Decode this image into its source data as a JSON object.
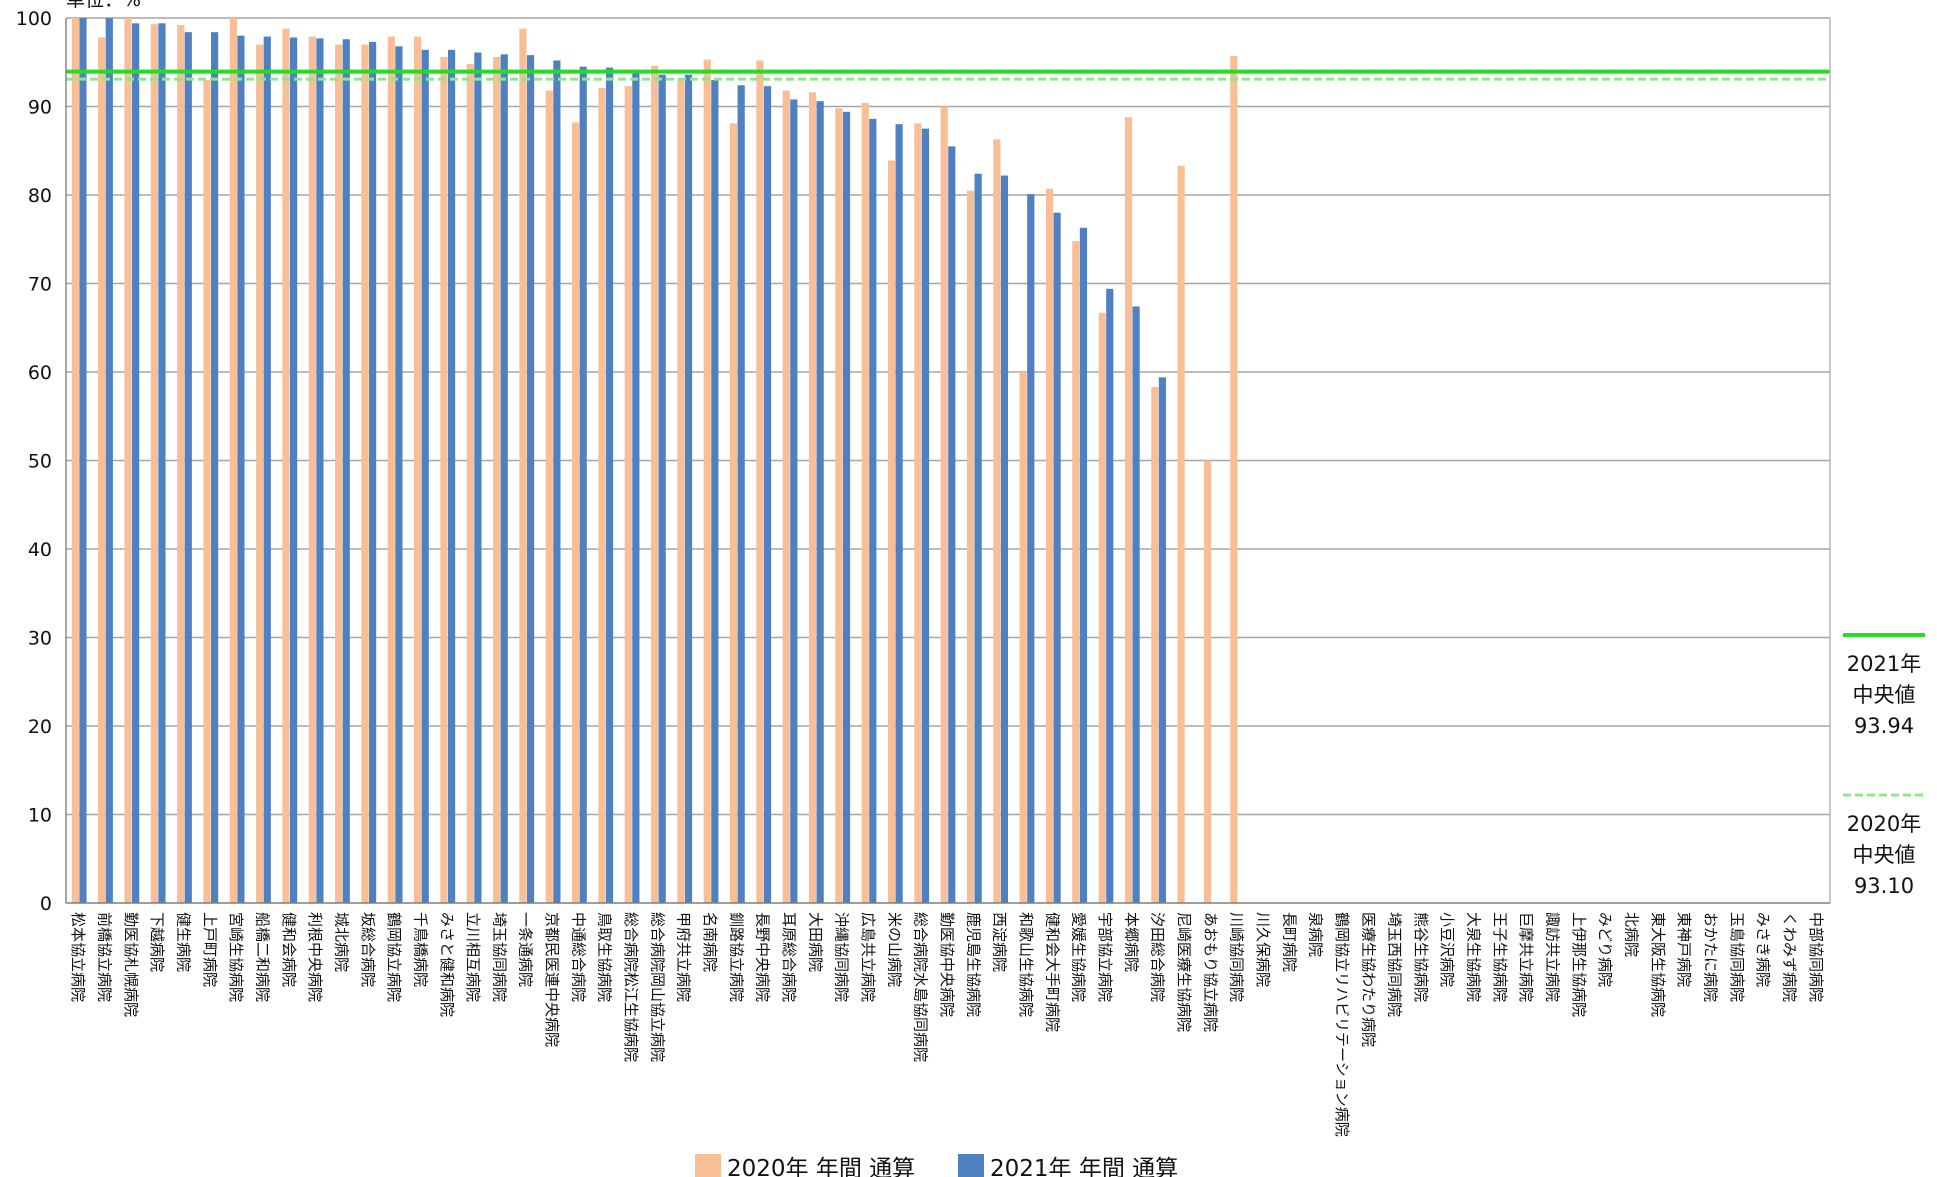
{
  "chart_data": {
    "type": "bar",
    "unit_label": "単位：%",
    "ylim": [
      0,
      100
    ],
    "yticks": [
      0,
      10,
      20,
      30,
      40,
      50,
      60,
      70,
      80,
      90,
      100
    ],
    "grid": true,
    "legend_position": "bottom",
    "categories": [
      "松本協立病院",
      "前橋協立病院",
      "勤医協札幌病院",
      "下越病院",
      "健生病院",
      "上戸町病院",
      "宮崎生協病院",
      "船橋二和病院",
      "健和会病院",
      "利根中央病院",
      "城北病院",
      "坂総合病院",
      "鶴岡協立病院",
      "千鳥橋病院",
      "みさと健和病院",
      "立川相互病院",
      "埼玉協同病院",
      "一条通病院",
      "京都民医連中央病院",
      "中通総合病院",
      "鳥取生協病院",
      "総合病院松江生協病院",
      "総合病院岡山協立病院",
      "甲府共立病院",
      "名南病院",
      "釧路協立病院",
      "長野中央病院",
      "耳原総合病院",
      "大田病院",
      "沖縄協同病院",
      "広島共立病院",
      "米の山病院",
      "総合病院水島協同病院",
      "勤医協中央病院",
      "鹿児島生協病院",
      "西淀病院",
      "和歌山生協病院",
      "健和会大手町病院",
      "愛媛生協病院",
      "宇部協立病院",
      "本郷病院",
      "汐田総合病院",
      "尼崎医療生協病院",
      "あおもり協立病院",
      "川崎協同病院",
      "川久保病院",
      "長町病院",
      "泉病院",
      "鶴岡協立リハビリテーション病院",
      "医療生協わたり病院",
      "埼玉西協同病院",
      "熊谷生協病院",
      "小豆沢病院",
      "大泉生協病院",
      "王子生協病院",
      "巨摩共立病院",
      "諏訪共立病院",
      "上伊那生協病院",
      "みどり病院",
      "北病院",
      "東大阪生協病院",
      "東神戸病院",
      "おかたに病院",
      "玉島協同病院",
      "みさき病院",
      "くわみず病院",
      "中部協同病院"
    ],
    "series": [
      {
        "name": "2020年 年間 通算",
        "color": "#f8be96",
        "values": [
          100,
          97.8,
          100,
          99.3,
          99.2,
          93,
          100,
          97,
          98.8,
          97.9,
          97,
          97,
          97.9,
          97.9,
          95.6,
          94.8,
          95.6,
          98.8,
          91.8,
          88.2,
          92.1,
          92.3,
          94.6,
          93.1,
          95.3,
          88.1,
          95.2,
          91.8,
          91.6,
          89.8,
          90.4,
          83.9,
          88.1,
          90,
          80.5,
          86.3,
          60,
          80.7,
          74.8,
          66.7,
          88.8,
          58.3,
          83.3,
          50,
          95.7,
          null,
          null,
          null,
          null,
          null,
          null,
          null,
          null,
          null,
          null,
          null,
          null,
          null,
          null,
          null,
          null,
          null,
          null,
          null,
          null,
          null,
          null
        ]
      },
      {
        "name": "2021年 年間 通算",
        "color": "#4f81c2",
        "values": [
          100,
          100,
          99.4,
          99.4,
          98.4,
          98.4,
          98,
          97.9,
          97.8,
          97.7,
          97.6,
          97.3,
          96.8,
          96.4,
          96.4,
          96.1,
          95.9,
          95.8,
          95.2,
          94.5,
          94.4,
          93.8,
          93.6,
          93.6,
          93,
          92.4,
          92.3,
          90.8,
          90.6,
          89.4,
          88.6,
          88,
          87.5,
          85.5,
          82.4,
          82.2,
          80.1,
          78,
          76.3,
          69.4,
          67.4,
          59.4,
          null,
          null,
          null,
          null,
          null,
          null,
          null,
          null,
          null,
          null,
          null,
          null,
          null,
          null,
          null,
          null,
          null,
          null,
          null,
          null,
          null,
          null,
          null,
          null,
          null
        ]
      }
    ],
    "medians": [
      {
        "year_label": "2021年",
        "label": "中央値",
        "value": 93.94,
        "value_text": "93.94",
        "style": "solid",
        "color": "#22dd22"
      },
      {
        "year_label": "2020年",
        "label": "中央値",
        "value": 93.1,
        "value_text": "93.10",
        "style": "dashed",
        "color": "#8be88b"
      }
    ]
  }
}
